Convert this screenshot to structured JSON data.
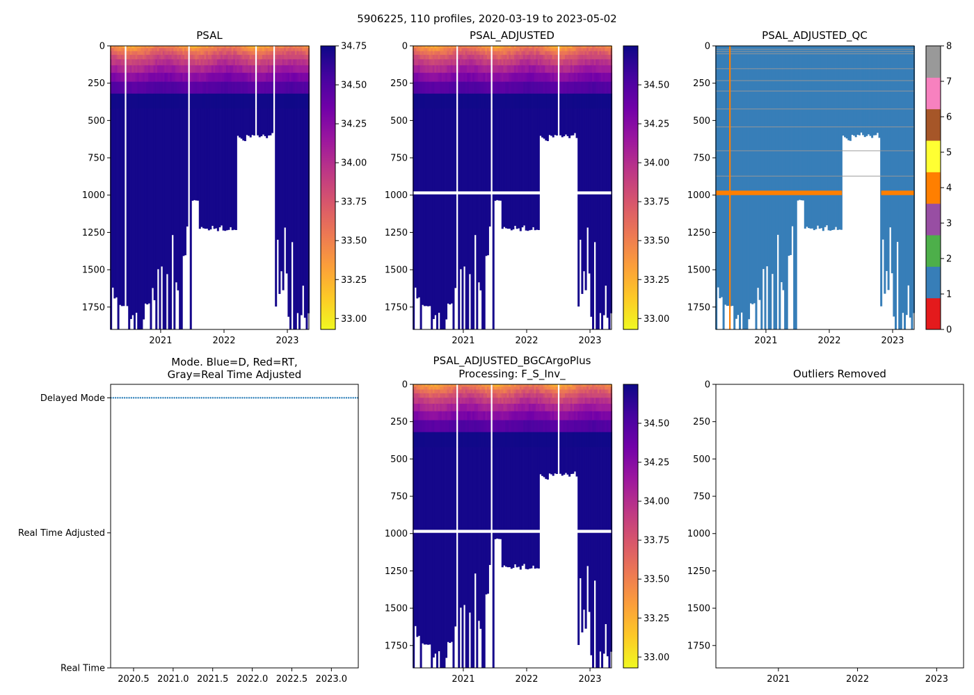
{
  "figure": {
    "suptitle": "5906225, 110 profiles, 2020-03-19 to 2023-05-02"
  },
  "colors": {
    "plasma_r": [
      "#f0f921",
      "#fdca26",
      "#fb9f3a",
      "#ed7953",
      "#d8576b",
      "#bd3786",
      "#9c179e",
      "#7201a8",
      "#46039f",
      "#0d0887"
    ],
    "qc_classes": [
      "#e41a1c",
      "#377eb8",
      "#4daf4a",
      "#984ea3",
      "#ff7f00",
      "#ffff33",
      "#a65628",
      "#f781bf",
      "#999999"
    ],
    "mode_marker": "#1f77b4",
    "frame": "#000000"
  },
  "chart_data": [
    {
      "id": "psal",
      "type": "heatmap",
      "title": "PSAL",
      "variable": "salinity",
      "xlim": [
        2020.21,
        2023.34
      ],
      "xticks": [
        2021,
        2022,
        2023
      ],
      "xtick_labels": [
        "2021",
        "2022",
        "2023"
      ],
      "ylim": [
        1900,
        0
      ],
      "yticks": [
        0,
        250,
        500,
        750,
        1000,
        1250,
        1500,
        1750
      ],
      "ytick_labels": [
        "0",
        "250",
        "500",
        "750",
        "1000",
        "1250",
        "1500",
        "1750"
      ],
      "colorbar": {
        "range": [
          32.93,
          34.75
        ],
        "ticks": [
          33.0,
          33.25,
          33.5,
          33.75,
          34.0,
          34.25,
          34.5,
          34.75
        ],
        "tick_labels": [
          "33.00",
          "33.25",
          "33.50",
          "33.75",
          "34.00",
          "34.25",
          "34.50",
          "34.75"
        ]
      },
      "has_gap_1000": false,
      "gap_profiles": [
        2021.45,
        2022.5,
        2022.79
      ],
      "nodata_columns": [
        [
          2020.42,
          2020.47
        ]
      ],
      "shallow_segments": [
        {
          "from": 2021.5,
          "to": 2021.6,
          "max_depth": 1020
        },
        {
          "from": 2021.6,
          "to": 2022.2,
          "max_depth": 1200
        },
        {
          "from": 2022.2,
          "to": 2022.35,
          "max_depth": 600
        },
        {
          "from": 2022.35,
          "to": 2022.8,
          "max_depth": 580
        }
      ]
    },
    {
      "id": "psal_adjusted",
      "type": "heatmap",
      "title": "PSAL_ADJUSTED",
      "variable": "salinity",
      "xlim": [
        2020.21,
        2023.34
      ],
      "xticks": [
        2021,
        2022,
        2023
      ],
      "xtick_labels": [
        "2021",
        "2022",
        "2023"
      ],
      "ylim": [
        1900,
        0
      ],
      "yticks": [
        0,
        250,
        500,
        750,
        1000,
        1250,
        1500,
        1750
      ],
      "ytick_labels": [
        "0",
        "250",
        "500",
        "750",
        "1000",
        "1250",
        "1500",
        "1750"
      ],
      "colorbar": {
        "range": [
          32.93,
          34.75
        ],
        "ticks": [
          33.0,
          33.25,
          33.5,
          33.75,
          34.0,
          34.25,
          34.5
        ],
        "tick_labels": [
          "33.00",
          "33.25",
          "33.50",
          "33.75",
          "34.00",
          "34.25",
          "34.50"
        ]
      },
      "has_gap_1000": true,
      "gap_profiles": [
        2020.9,
        2021.45,
        2022.5
      ],
      "nodata_columns": [],
      "shallow_segments": [
        {
          "from": 2021.5,
          "to": 2021.6,
          "max_depth": 1020
        },
        {
          "from": 2021.6,
          "to": 2022.2,
          "max_depth": 1200
        },
        {
          "from": 2022.2,
          "to": 2022.35,
          "max_depth": 600
        },
        {
          "from": 2022.35,
          "to": 2022.8,
          "max_depth": 580
        }
      ]
    },
    {
      "id": "psal_adjusted_qc",
      "type": "heatmap",
      "title": "PSAL_ADJUSTED_QC",
      "variable": "qc_flag",
      "xlim": [
        2020.21,
        2023.34
      ],
      "xticks": [
        2021,
        2022,
        2023
      ],
      "xtick_labels": [
        "2021",
        "2022",
        "2023"
      ],
      "ylim": [
        1900,
        0
      ],
      "yticks": [
        0,
        250,
        500,
        750,
        1000,
        1250,
        1500,
        1750
      ],
      "ytick_labels": [
        "0",
        "250",
        "500",
        "750",
        "1000",
        "1250",
        "1500",
        "1750"
      ],
      "colorbar": {
        "range": [
          0,
          8
        ],
        "ticks": [
          0,
          1,
          2,
          3,
          4,
          5,
          6,
          7,
          8
        ],
        "tick_labels": [
          "0",
          "1",
          "2",
          "3",
          "4",
          "5",
          "6",
          "7",
          "8"
        ],
        "classes": 9
      },
      "base_flag": 1,
      "flag4_depth_band": [
        970,
        1000
      ],
      "flag4_profile": 2020.43,
      "flag8_depths": [
        20,
        35,
        50,
        150,
        230,
        300,
        420,
        540,
        700,
        870
      ],
      "shallow_segments": [
        {
          "from": 2021.5,
          "to": 2021.6,
          "max_depth": 1020
        },
        {
          "from": 2021.6,
          "to": 2022.2,
          "max_depth": 1200
        },
        {
          "from": 2022.2,
          "to": 2022.35,
          "max_depth": 600
        },
        {
          "from": 2022.35,
          "to": 2022.8,
          "max_depth": 580
        }
      ]
    },
    {
      "id": "mode",
      "type": "scatter",
      "title": "Mode. Blue=D, Red=RT,\nGray=Real Time Adjusted",
      "xlim": [
        2020.21,
        2023.34
      ],
      "xticks": [
        2020.5,
        2021.0,
        2021.5,
        2022.0,
        2022.5,
        2023.0
      ],
      "xtick_labels": [
        "2020.5",
        "2021.0",
        "2021.5",
        "2022.0",
        "2022.5",
        "2023.0"
      ],
      "yticks": [
        0,
        1,
        2
      ],
      "ytick_labels": [
        "Real Time",
        "Real Time Adjusted",
        "Delayed Mode"
      ],
      "ylim": [
        0,
        2.1
      ],
      "series": [
        {
          "name": "Delayed Mode",
          "y": 2,
          "x_start": 2020.215,
          "x_end": 2023.333,
          "count": 110
        }
      ]
    },
    {
      "id": "bgcargoplus",
      "type": "heatmap",
      "title": "PSAL_ADJUSTED_BGCArgoPlus\nProcessing: F_S_Inv_",
      "variable": "salinity",
      "xlim": [
        2020.21,
        2023.34
      ],
      "xticks": [
        2021,
        2022,
        2023
      ],
      "xtick_labels": [
        "2021",
        "2022",
        "2023"
      ],
      "ylim": [
        1900,
        0
      ],
      "yticks": [
        0,
        250,
        500,
        750,
        1000,
        1250,
        1500,
        1750
      ],
      "ytick_labels": [
        "0",
        "250",
        "500",
        "750",
        "1000",
        "1250",
        "1500",
        "1750"
      ],
      "colorbar": {
        "range": [
          32.93,
          34.75
        ],
        "ticks": [
          33.0,
          33.25,
          33.5,
          33.75,
          34.0,
          34.25,
          34.5
        ],
        "tick_labels": [
          "33.00",
          "33.25",
          "33.50",
          "33.75",
          "34.00",
          "34.25",
          "34.50"
        ]
      },
      "has_gap_1000": true,
      "gap_profiles": [
        2020.9,
        2021.45,
        2022.5
      ],
      "nodata_columns": [],
      "shallow_segments": [
        {
          "from": 2021.5,
          "to": 2021.6,
          "max_depth": 1020
        },
        {
          "from": 2021.6,
          "to": 2022.2,
          "max_depth": 1200
        },
        {
          "from": 2022.2,
          "to": 2022.35,
          "max_depth": 600
        },
        {
          "from": 2022.35,
          "to": 2022.8,
          "max_depth": 580
        }
      ]
    },
    {
      "id": "outliers",
      "type": "scatter",
      "title": "Outliers Removed",
      "xlim": [
        2020.21,
        2023.34
      ],
      "xticks": [
        2021,
        2022,
        2023
      ],
      "xtick_labels": [
        "2021",
        "2022",
        "2023"
      ],
      "ylim": [
        1900,
        0
      ],
      "yticks": [
        0,
        250,
        500,
        750,
        1000,
        1250,
        1500,
        1750
      ],
      "ytick_labels": [
        "0",
        "250",
        "500",
        "750",
        "1000",
        "1250",
        "1500",
        "1750"
      ],
      "series": []
    }
  ]
}
